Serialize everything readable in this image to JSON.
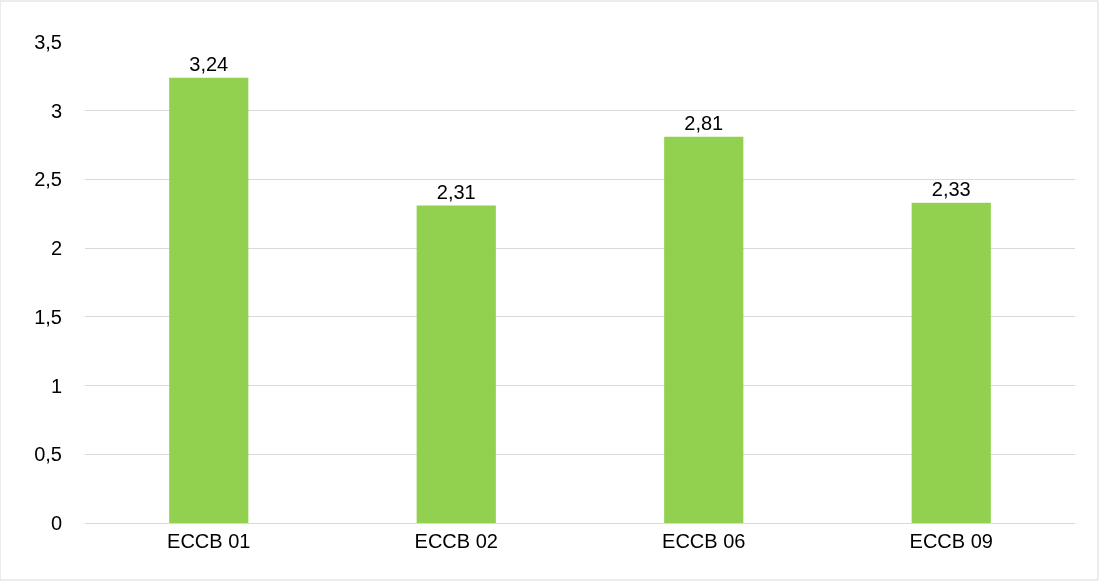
{
  "chart_data": {
    "type": "bar",
    "categories": [
      "ECCB 01",
      "ECCB 02",
      "ECCB 06",
      "ECCB 09"
    ],
    "values": [
      3.24,
      2.31,
      2.81,
      2.33
    ],
    "value_labels": [
      "3,24",
      "2,31",
      "2,81",
      "2,33"
    ],
    "color": "#92d050",
    "ylim": [
      0,
      3.5
    ],
    "yticks": [
      0,
      {
        "value": 0.5,
        "label": "0,5"
      },
      1,
      {
        "value": 1.5,
        "label": "1,5"
      },
      2,
      {
        "value": 2.5,
        "label": "2,5"
      },
      3,
      {
        "value": 3.5,
        "label": "3,5"
      }
    ],
    "grid": "y"
  }
}
